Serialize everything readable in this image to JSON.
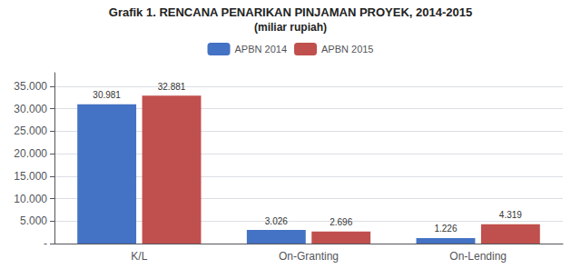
{
  "chart_data": {
    "type": "bar",
    "title": "Grafik 1. RENCANA PENARIKAN PINJAMAN PROYEK, 2014-2015",
    "subtitle": "(miliar rupiah)",
    "categories": [
      "K/L",
      "On-Granting",
      "On-Lending"
    ],
    "series": [
      {
        "name": "APBN 2014",
        "color": "#4472C4",
        "values": [
          30981,
          3026,
          1226
        ],
        "value_labels": [
          "30.981",
          "3.026",
          "1.226"
        ]
      },
      {
        "name": "APBN 2015",
        "color": "#C0504D",
        "values": [
          32881,
          2696,
          4319
        ],
        "value_labels": [
          "32.881",
          "2.696",
          "4.319"
        ]
      }
    ],
    "ylim": [
      0,
      38000
    ],
    "yticks": [
      {
        "value": 0,
        "label": "-"
      },
      {
        "value": 5000,
        "label": "5.000"
      },
      {
        "value": 10000,
        "label": "10.000"
      },
      {
        "value": 15000,
        "label": "15.000"
      },
      {
        "value": 20000,
        "label": "20.000"
      },
      {
        "value": 25000,
        "label": "25.000"
      },
      {
        "value": 30000,
        "label": "30.000"
      },
      {
        "value": 35000,
        "label": "35.000"
      }
    ],
    "grid": true,
    "legend": "top",
    "data_labels": true
  }
}
